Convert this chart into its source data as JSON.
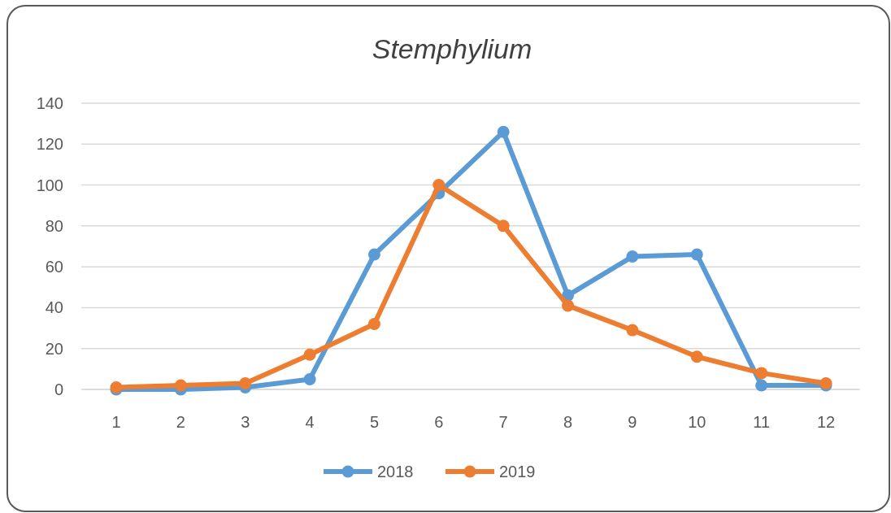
{
  "chart_data": {
    "type": "line",
    "title": "Stemphylium",
    "x": [
      1,
      2,
      3,
      4,
      5,
      6,
      7,
      8,
      9,
      10,
      11,
      12
    ],
    "xlim": [
      0.5,
      12.5
    ],
    "xticks": [
      1,
      2,
      3,
      4,
      5,
      6,
      7,
      8,
      9,
      10,
      11,
      12
    ],
    "series": [
      {
        "name": "2018",
        "color": "#5b9bd5",
        "values": [
          0,
          0,
          1,
          5,
          66,
          96,
          126,
          46,
          65,
          66,
          2,
          2
        ]
      },
      {
        "name": "2019",
        "color": "#ed7d31",
        "values": [
          1,
          2,
          3,
          17,
          32,
          100,
          80,
          41,
          29,
          16,
          8,
          3
        ]
      }
    ],
    "ylim": [
      0,
      140
    ],
    "yticks": [
      0,
      20,
      40,
      60,
      80,
      100,
      120,
      140
    ],
    "grid": "y",
    "legend": "bottom",
    "marker": "circle",
    "line_style": "solid"
  }
}
